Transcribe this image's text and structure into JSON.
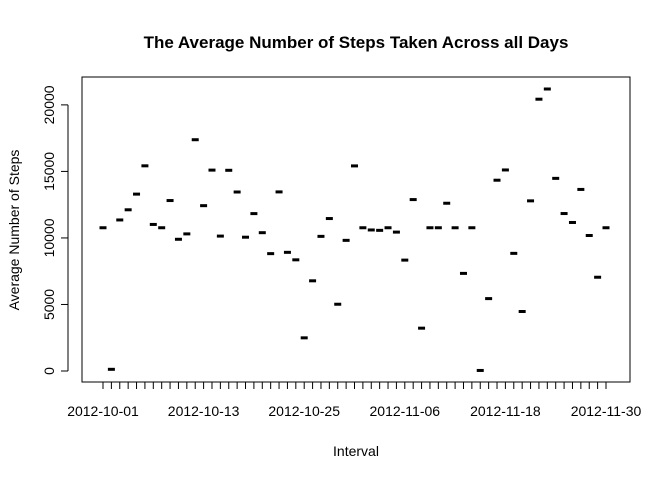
{
  "chart_data": {
    "type": "scatter",
    "title": "The Average Number of Steps Taken Across all Days",
    "xlabel": "Interval",
    "ylabel": "Average Number of Steps",
    "ylim": [
      0,
      21194
    ],
    "yticks": [
      0,
      5000,
      10000,
      15000,
      20000
    ],
    "x_tick_labels": [
      "2012-10-01",
      "2012-10-13",
      "2012-10-25",
      "2012-11-06",
      "2012-11-18",
      "2012-11-30"
    ],
    "grid": false,
    "legend": "none",
    "categories": [
      "2012-10-01",
      "2012-10-02",
      "2012-10-03",
      "2012-10-04",
      "2012-10-05",
      "2012-10-06",
      "2012-10-07",
      "2012-10-08",
      "2012-10-09",
      "2012-10-10",
      "2012-10-11",
      "2012-10-12",
      "2012-10-13",
      "2012-10-14",
      "2012-10-15",
      "2012-10-16",
      "2012-10-17",
      "2012-10-18",
      "2012-10-19",
      "2012-10-20",
      "2012-10-21",
      "2012-10-22",
      "2012-10-23",
      "2012-10-24",
      "2012-10-25",
      "2012-10-26",
      "2012-10-27",
      "2012-10-28",
      "2012-10-29",
      "2012-10-30",
      "2012-10-31",
      "2012-11-01",
      "2012-11-02",
      "2012-11-03",
      "2012-11-04",
      "2012-11-05",
      "2012-11-06",
      "2012-11-07",
      "2012-11-08",
      "2012-11-09",
      "2012-11-10",
      "2012-11-11",
      "2012-11-12",
      "2012-11-13",
      "2012-11-14",
      "2012-11-15",
      "2012-11-16",
      "2012-11-17",
      "2012-11-18",
      "2012-11-19",
      "2012-11-20",
      "2012-11-21",
      "2012-11-22",
      "2012-11-23",
      "2012-11-24",
      "2012-11-25",
      "2012-11-26",
      "2012-11-27",
      "2012-11-28",
      "2012-11-29",
      "2012-11-30"
    ],
    "values": [
      10766,
      126,
      11352,
      12116,
      13294,
      15420,
      11015,
      10766,
      12811,
      9900,
      10304,
      17382,
      12426,
      15098,
      10139,
      15084,
      13452,
      10056,
      11829,
      10395,
      8821,
      13460,
      8918,
      8355,
      2492,
      6778,
      10119,
      11458,
      5018,
      9819,
      15414,
      10766,
      10600,
      10571,
      10766,
      10439,
      8334,
      12883,
      3219,
      10766,
      10766,
      12608,
      10765,
      7336,
      10766,
      41,
      5441,
      14339,
      15110,
      8841,
      4472,
      12787,
      20427,
      21194,
      14478,
      11834,
      11162,
      13646,
      10183,
      7047,
      10766
    ],
    "marker": "short horizontal dash",
    "color": "#000000"
  }
}
